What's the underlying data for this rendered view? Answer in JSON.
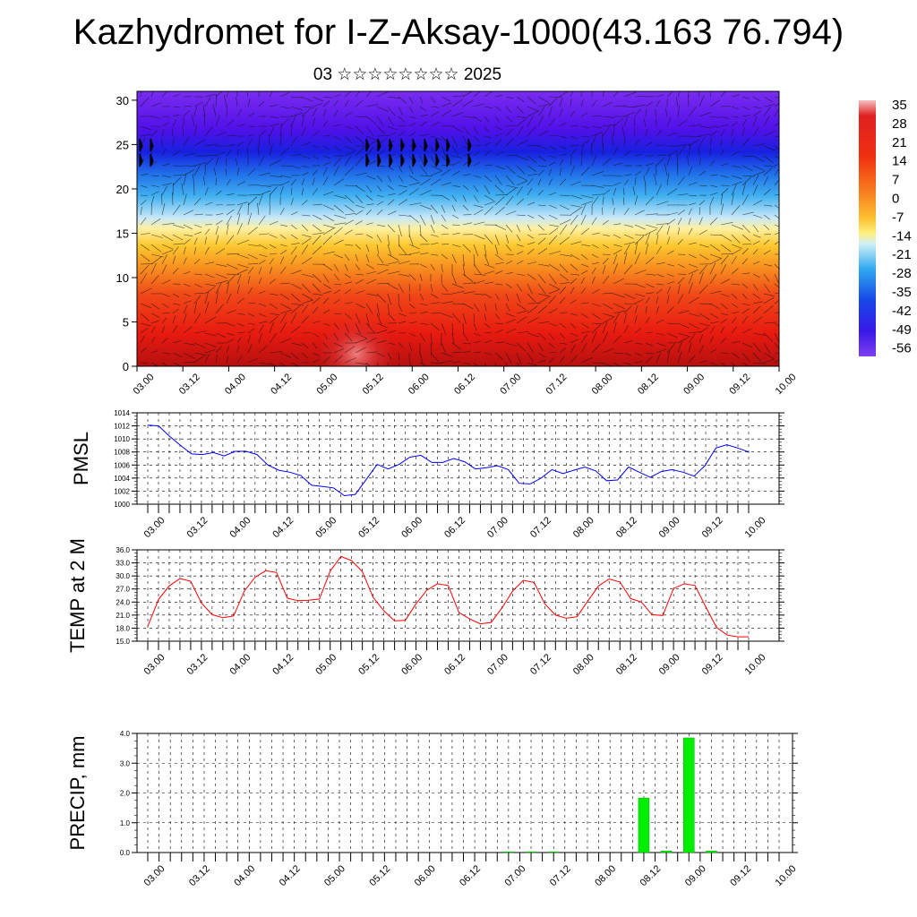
{
  "title": "Kazhydromet for I-Z-Aksay-1000(43.163 76.794)",
  "subtitle": "03 ☆☆☆☆☆☆☆☆ 2025",
  "chart_data": [
    {
      "type": "heatmap",
      "x_tick_labels": [
        "03.00",
        "03.12",
        "04.00",
        "04.12",
        "05.00",
        "05.12",
        "06.00",
        "06.12",
        "07.00",
        "07.12",
        "08.00",
        "08.12",
        "09.00",
        "09.12",
        "10.00"
      ],
      "y_ticks": [
        0,
        5,
        10,
        15,
        20,
        25,
        30
      ],
      "ylim": [
        0,
        31
      ],
      "colorbar_labels": [
        "35",
        "28",
        "21",
        "14",
        "7",
        "0",
        "-7",
        "-14",
        "-21",
        "-28",
        "-35",
        "-42",
        "-49",
        "-56"
      ],
      "colorbar_range": [
        -60,
        38
      ],
      "overlay": "wind vectors",
      "description_values": {
        "layers": [
          0,
          5,
          10,
          15,
          20,
          25,
          30
        ],
        "temperature_by_layer": [
          30,
          26,
          14,
          -2,
          -24,
          -48,
          -58
        ]
      }
    },
    {
      "type": "line",
      "ylabel": "PMSL",
      "ylim": [
        1000,
        1014
      ],
      "y_ticks": [
        1000,
        1002,
        1004,
        1006,
        1008,
        1010,
        1012,
        1014
      ],
      "x_tick_labels": [
        "03.00",
        "03.12",
        "04.00",
        "04.12",
        "05.00",
        "05.12",
        "06.00",
        "06.12",
        "07.00",
        "07.12",
        "08.00",
        "08.12",
        "09.00",
        "09.12",
        "10.00"
      ],
      "color": "#0000ff",
      "values": [
        1012.1,
        1012.0,
        1010.4,
        1009.0,
        1007.7,
        1007.6,
        1007.9,
        1007.4,
        1008.1,
        1008.1,
        1007.6,
        1006.0,
        1005.2,
        1004.9,
        1004.4,
        1002.9,
        1002.7,
        1002.5,
        1001.3,
        1001.5,
        1003.8,
        1006.1,
        1005.4,
        1006.1,
        1007.2,
        1007.5,
        1006.4,
        1006.4,
        1007.0,
        1006.5,
        1005.4,
        1005.6,
        1005.9,
        1005.3,
        1003.2,
        1003.1,
        1004.0,
        1005.3,
        1004.7,
        1005.2,
        1005.7,
        1005.1,
        1003.6,
        1003.7,
        1005.7,
        1004.9,
        1004.1,
        1005.0,
        1005.3,
        1004.9,
        1004.3,
        1005.9,
        1008.6,
        1009.1,
        1008.6,
        1008.0
      ]
    },
    {
      "type": "line",
      "ylabel": "TEMP at 2 M",
      "ylim": [
        15,
        36
      ],
      "y_ticks": [
        "15.0",
        "18.0",
        "21.0",
        "24.0",
        "27.0",
        "30.0",
        "33.0",
        "36.0"
      ],
      "x_tick_labels": [
        "03.00",
        "03.12",
        "04.00",
        "04.12",
        "05.00",
        "05.12",
        "06.00",
        "06.12",
        "07.00",
        "07.12",
        "08.00",
        "08.12",
        "09.00",
        "09.12",
        "10.00"
      ],
      "color": "#ff0000",
      "values": [
        18.4,
        24.6,
        27.7,
        29.4,
        28.8,
        23.8,
        21.1,
        20.4,
        20.8,
        26.5,
        29.7,
        31.2,
        30.8,
        24.9,
        24.3,
        24.4,
        24.7,
        31.1,
        34.5,
        33.5,
        31.0,
        25.1,
        22.0,
        19.7,
        19.8,
        23.6,
        26.7,
        28.2,
        27.8,
        21.6,
        20.1,
        19.0,
        19.3,
        22.6,
        26.5,
        29.0,
        28.5,
        23.6,
        21.0,
        20.3,
        20.6,
        24.2,
        27.7,
        29.3,
        28.6,
        24.8,
        24.0,
        21.1,
        20.9,
        27.1,
        28.2,
        27.8,
        22.9,
        18.2,
        16.4,
        16.0,
        16.0
      ]
    },
    {
      "type": "bar",
      "ylabel": "PRECIP, mm",
      "ylim": [
        0,
        4
      ],
      "y_ticks": [
        "0.0",
        "1.0",
        "2.0",
        "3.0",
        "4.0"
      ],
      "x_tick_labels": [
        "03.00",
        "03.12",
        "04.00",
        "04.12",
        "05.00",
        "05.12",
        "06.00",
        "06.12",
        "07.00",
        "07.12",
        "08.00",
        "08.12",
        "09.00",
        "09.12",
        "10.00"
      ],
      "color": "#00ee00",
      "bars": [
        {
          "t": 48,
          "value": 0.02
        },
        {
          "t": 51,
          "value": 0.02
        },
        {
          "t": 54,
          "value": 0.02
        },
        {
          "t": 66,
          "value": 1.83
        },
        {
          "t": 69,
          "value": 0.05
        },
        {
          "t": 72,
          "value": 3.85
        },
        {
          "t": 75,
          "value": 0.05
        }
      ]
    }
  ]
}
